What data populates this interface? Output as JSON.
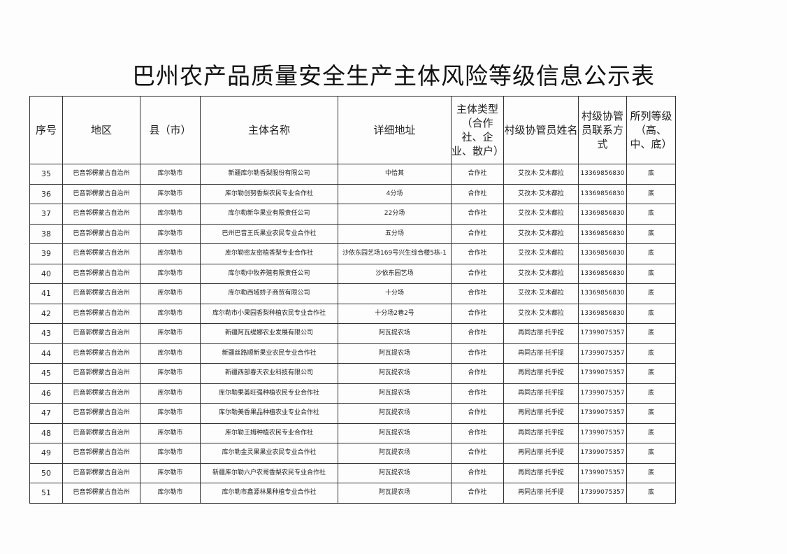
{
  "title": "巴州农产品质量安全生产主体风险等级信息公示表",
  "headers": [
    "序号",
    "地区",
    "县（市）",
    "主体名称",
    "详细地址",
    "主体类型（合作社、企业、散户）",
    "村级协管员姓名",
    "村级协管员联系方式",
    "所列等级（高、中、底）"
  ],
  "rows": [
    [
      "35",
      "巴音郭楞蒙古自治州",
      "库尔勒市",
      "新疆库尔勒香梨股份有限公司",
      "中恰其",
      "合作社",
      "艾孜木·艾木都拉",
      "13369856830",
      "底"
    ],
    [
      "36",
      "巴音郭楞蒙古自治州",
      "库尔勒市",
      "库尔勒创努香梨农民专业合作社",
      "4分场",
      "合作社",
      "艾孜木·艾木都拉",
      "13369856830",
      "底"
    ],
    [
      "37",
      "巴音郭楞蒙古自治州",
      "库尔勒市",
      "库尔勒新华果业有限责任公司",
      "22分场",
      "合作社",
      "艾孜木·艾木都拉",
      "13369856830",
      "底"
    ],
    [
      "38",
      "巴音郭楞蒙古自治州",
      "库尔勒市",
      "巴州巴音王氏果业农民专业合作社",
      "五分场",
      "合作社",
      "艾孜木·艾木都拉",
      "13369856830",
      "底"
    ],
    [
      "39",
      "巴音郭楞蒙古自治州",
      "库尔勒市",
      "库尔勒密友密植香梨专业合作社",
      "沙依东园艺场169号兴生综合楼5栋-1",
      "合作社",
      "艾孜木·艾木都拉",
      "13369856830",
      "底"
    ],
    [
      "40",
      "巴音郭楞蒙古自治州",
      "库尔勒市",
      "库尔勒中牧养殖有限责任公司",
      "沙依东园艺场",
      "合作社",
      "艾孜木·艾木都拉",
      "13369856830",
      "底"
    ],
    [
      "41",
      "巴音郭楞蒙古自治州",
      "库尔勒市",
      "库尔勒西域娇子商贸有限公司",
      "十分场",
      "合作社",
      "艾孜木·艾木都拉",
      "13369856830",
      "底"
    ],
    [
      "42",
      "巴音郭楞蒙古自治州",
      "库尔勒市",
      "库尔勒市小果园香梨种植农民专业合作社",
      "十分场2巷2号",
      "合作社",
      "艾孜木·艾木都拉",
      "13369856830",
      "底"
    ],
    [
      "43",
      "巴音郭楞蒙古自治州",
      "库尔勒市",
      "新疆阿瓦缇娜农业发展有限公司",
      "阿瓦提农场",
      "合作社",
      "再同古丽·托乎提",
      "17399075357",
      "底"
    ],
    [
      "44",
      "巴音郭楞蒙古自治州",
      "库尔勒市",
      "新疆丝路顺新果业农民专业合作社",
      "阿瓦提农场",
      "合作社",
      "再同古丽·托乎提",
      "17399075357",
      "底"
    ],
    [
      "45",
      "巴音郭楞蒙古自治州",
      "库尔勒市",
      "新疆西部春天农业科技有限公司",
      "阿瓦提农场",
      "合作社",
      "再同古丽·托乎提",
      "17399075357",
      "底"
    ],
    [
      "46",
      "巴音郭楞蒙古自治州",
      "库尔勒市",
      "库尔勒果荟旺强种植农民专业合作社",
      "阿瓦提农场",
      "合作社",
      "再同古丽·托乎提",
      "17399075357",
      "底"
    ],
    [
      "47",
      "巴音郭楞蒙古自治州",
      "库尔勒市",
      "库尔勒美香果品种植农业专业合作社",
      "阿瓦提农场",
      "合作社",
      "再同古丽·托乎提",
      "17399075357",
      "底"
    ],
    [
      "48",
      "巴音郭楞蒙古自治州",
      "库尔勒市",
      "库尔勒王姆种植农民专业合作社",
      "阿瓦提农场",
      "合作社",
      "再同古丽·托乎提",
      "17399075357",
      "底"
    ],
    [
      "49",
      "巴音郭楞蒙古自治州",
      "库尔勒市",
      "库尔勒金灵果果业农民专业合作社",
      "阿瓦提农场",
      "合作社",
      "再同古丽·托乎提",
      "17399075357",
      "底"
    ],
    [
      "50",
      "巴音郭楞蒙古自治州",
      "库尔勒市",
      "新疆库尔勒六户农哥香梨农民专业合作社",
      "阿瓦提农场",
      "合作社",
      "再同古丽·托乎提",
      "17399075357",
      "底"
    ],
    [
      "51",
      "巴音郭楞蒙古自治州",
      "库尔勒市",
      "库尔勒市鑫源林果种植专业合作社",
      "阿瓦提农场",
      "合作社",
      "再同古丽·托乎提",
      "17399075357",
      "底"
    ]
  ]
}
